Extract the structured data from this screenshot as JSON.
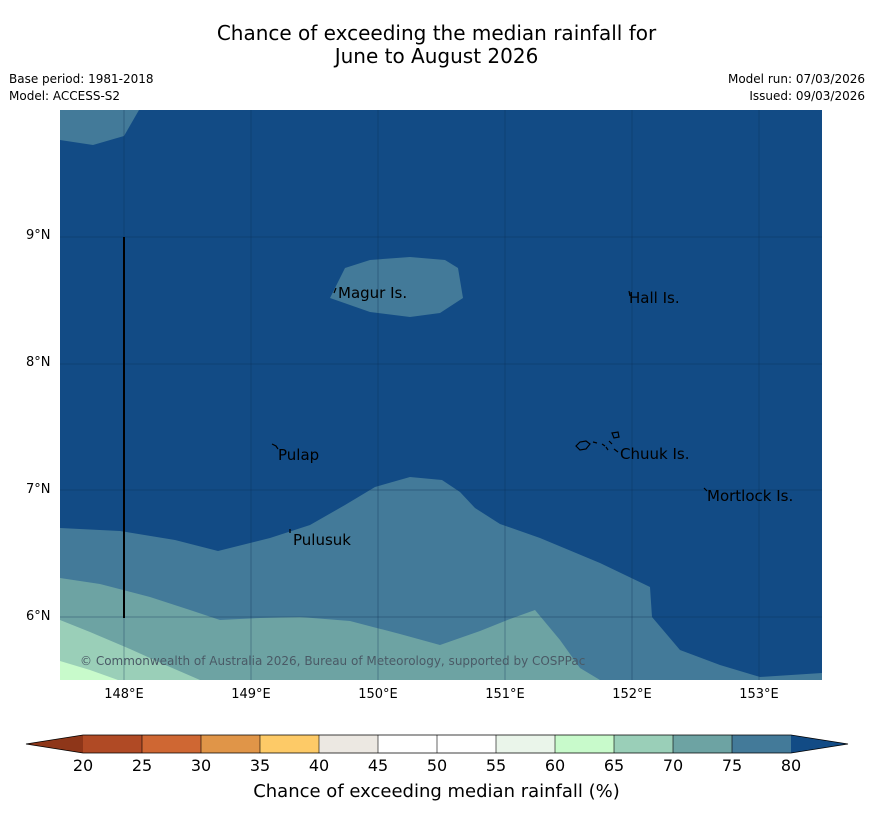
{
  "title_line1": "Chance of exceeding the median rainfall for",
  "title_line2": "June to August 2026",
  "meta": {
    "base_period": "Base period: 1981-2018",
    "model": "Model: ACCESS-S2",
    "model_run": "Model run: 07/03/2026",
    "issued": "Issued: 09/03/2026"
  },
  "map": {
    "y_ticks": [
      "9°N",
      "8°N",
      "7°N",
      "6°N"
    ],
    "x_ticks": [
      "148°E",
      "149°E",
      "150°E",
      "151°E",
      "152°E",
      "153°E"
    ],
    "places": {
      "magur": "Magur Is.",
      "hall": "Hall Is.",
      "pulap": "Pulap",
      "chuuk": "Chuuk Is.",
      "mortlock": "Mortlock Is.",
      "pulusuk": "Pulusuk"
    },
    "copyright": "© Commonwealth of Australia 2026, Bureau of Meteorology, supported by COSPPac"
  },
  "colorbar": {
    "ticks": [
      "20",
      "25",
      "30",
      "35",
      "40",
      "45",
      "50",
      "55",
      "60",
      "65",
      "70",
      "75",
      "80"
    ],
    "colors": [
      "#b04a25",
      "#cf6733",
      "#e09548",
      "#fdca67",
      "#ece8e2",
      "#ffffff",
      "#ffffff",
      "#eaf5ea",
      "#c8facb",
      "#9acfb8",
      "#6da3a3",
      "#437a99"
    ],
    "under_color": "#8e3619",
    "over_color": "#124b85",
    "label": "Chance of exceeding median rainfall (%)"
  },
  "colors": {
    "p80": "#124b85",
    "p75": "#437a99",
    "p70": "#6da3a3",
    "p65": "#9acfb8",
    "p60": "#c8facb"
  }
}
